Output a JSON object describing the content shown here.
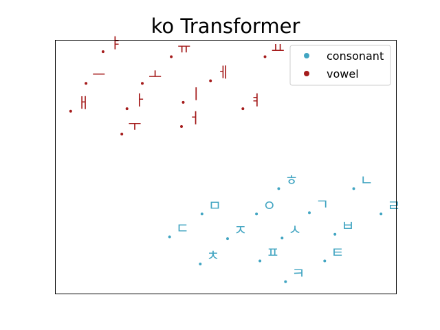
{
  "chart_data": {
    "type": "scatter",
    "title": "ko Transformer",
    "xlabel": "",
    "ylabel": "",
    "xticks": "none",
    "yticks": "none",
    "legend_position": "top-right",
    "series": [
      {
        "name": "consonant",
        "color": "#42a5c2",
        "points": [
          {
            "label": "ㅎ",
            "x": 0.655,
            "y": 0.415
          },
          {
            "label": "ㄴ",
            "x": 0.875,
            "y": 0.415
          },
          {
            "label": "ㅁ",
            "x": 0.43,
            "y": 0.315
          },
          {
            "label": "ㅇ",
            "x": 0.59,
            "y": 0.315
          },
          {
            "label": "ㄱ",
            "x": 0.745,
            "y": 0.32
          },
          {
            "label": "ㄹ",
            "x": 0.955,
            "y": 0.315
          },
          {
            "label": "ㄷ",
            "x": 0.335,
            "y": 0.225
          },
          {
            "label": "ㅈ",
            "x": 0.505,
            "y": 0.218
          },
          {
            "label": "ㅅ",
            "x": 0.665,
            "y": 0.22
          },
          {
            "label": "ㅂ",
            "x": 0.82,
            "y": 0.235
          },
          {
            "label": "ㅊ",
            "x": 0.425,
            "y": 0.118
          },
          {
            "label": "ㅍ",
            "x": 0.6,
            "y": 0.13
          },
          {
            "label": "ㅌ",
            "x": 0.79,
            "y": 0.13
          },
          {
            "label": "ㅋ",
            "x": 0.675,
            "y": 0.048
          }
        ]
      },
      {
        "name": "vowel",
        "color": "#a51c1c",
        "points": [
          {
            "label": "ㅑ",
            "x": 0.14,
            "y": 0.955
          },
          {
            "label": "ㅠ",
            "x": 0.34,
            "y": 0.935
          },
          {
            "label": "ㅛ",
            "x": 0.615,
            "y": 0.935
          },
          {
            "label": "ㅡ",
            "x": 0.09,
            "y": 0.83
          },
          {
            "label": "ㅗ",
            "x": 0.255,
            "y": 0.83
          },
          {
            "label": "ㅔ",
            "x": 0.455,
            "y": 0.84
          },
          {
            "label": "ㅐ",
            "x": 0.045,
            "y": 0.72
          },
          {
            "label": "ㅏ",
            "x": 0.21,
            "y": 0.73
          },
          {
            "label": "ㅣ",
            "x": 0.375,
            "y": 0.755
          },
          {
            "label": "ㅕ",
            "x": 0.55,
            "y": 0.73
          },
          {
            "label": "ㅓ",
            "x": 0.37,
            "y": 0.66
          },
          {
            "label": "ㅜ",
            "x": 0.195,
            "y": 0.63
          }
        ]
      }
    ],
    "xlim": [
      0,
      1
    ],
    "ylim": [
      0,
      1
    ]
  }
}
